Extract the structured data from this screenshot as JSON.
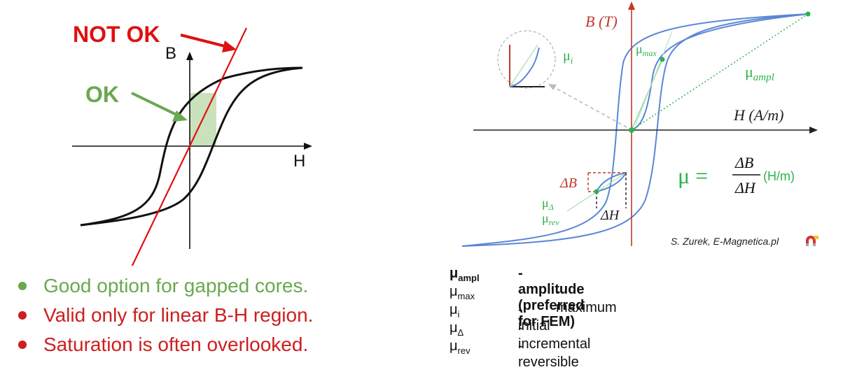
{
  "left_figure": {
    "not_ok_label": "NOT OK",
    "ok_label": "OK",
    "b_axis_label": "B",
    "h_axis_label": "H",
    "colors": {
      "not_ok": "#e01010",
      "ok": "#6aa84f",
      "ok_fill": "#c9e2bb",
      "curve": "#111111"
    }
  },
  "bullets": [
    {
      "text": "Good option for gapped cores.",
      "color": "#6aa84f"
    },
    {
      "text": "Valid only for linear B-H region.",
      "color": "#cc1f1f"
    },
    {
      "text": "Saturation is often overlooked.",
      "color": "#cc1f1f"
    }
  ],
  "right_figure": {
    "b_axis_label": "B (T)",
    "h_axis_label": "H (A/m)",
    "mu_i": "μ",
    "mu_i_sub": "i",
    "mu_max": "μ",
    "mu_max_sub": "max",
    "mu_ampl": "μ",
    "mu_ampl_sub": "ampl",
    "mu_delta": "μ",
    "mu_delta_sub": "Δ",
    "mu_rev": "μ",
    "mu_rev_sub": "rev",
    "delta_b": "ΔB",
    "delta_h": "ΔH",
    "formula_mu": "μ =",
    "formula_num": "ΔB",
    "formula_den": "ΔH",
    "formula_unit": "(H/m)",
    "credit": "S. Zurek, E-Magnetica.pl",
    "colors": {
      "curve": "#5b86d6",
      "axis_b": "#c0392b",
      "green": "#2bb34a",
      "dashed_red": "#c0392b"
    }
  },
  "legend": [
    {
      "symbol": "μ",
      "sub": "ampl",
      "desc": "- amplitude (preferred for FEM)",
      "bold": true
    },
    {
      "symbol": "μ",
      "sub": "max",
      "desc": "- maximum",
      "bold": false
    },
    {
      "symbol": "μ",
      "sub": "i",
      "desc": "- initial",
      "bold": false
    },
    {
      "symbol": "μ",
      "sub": "Δ",
      "desc": "- incremental",
      "bold": false
    },
    {
      "symbol": "μ",
      "sub": "rev",
      "desc": "- reversible",
      "bold": false
    }
  ]
}
